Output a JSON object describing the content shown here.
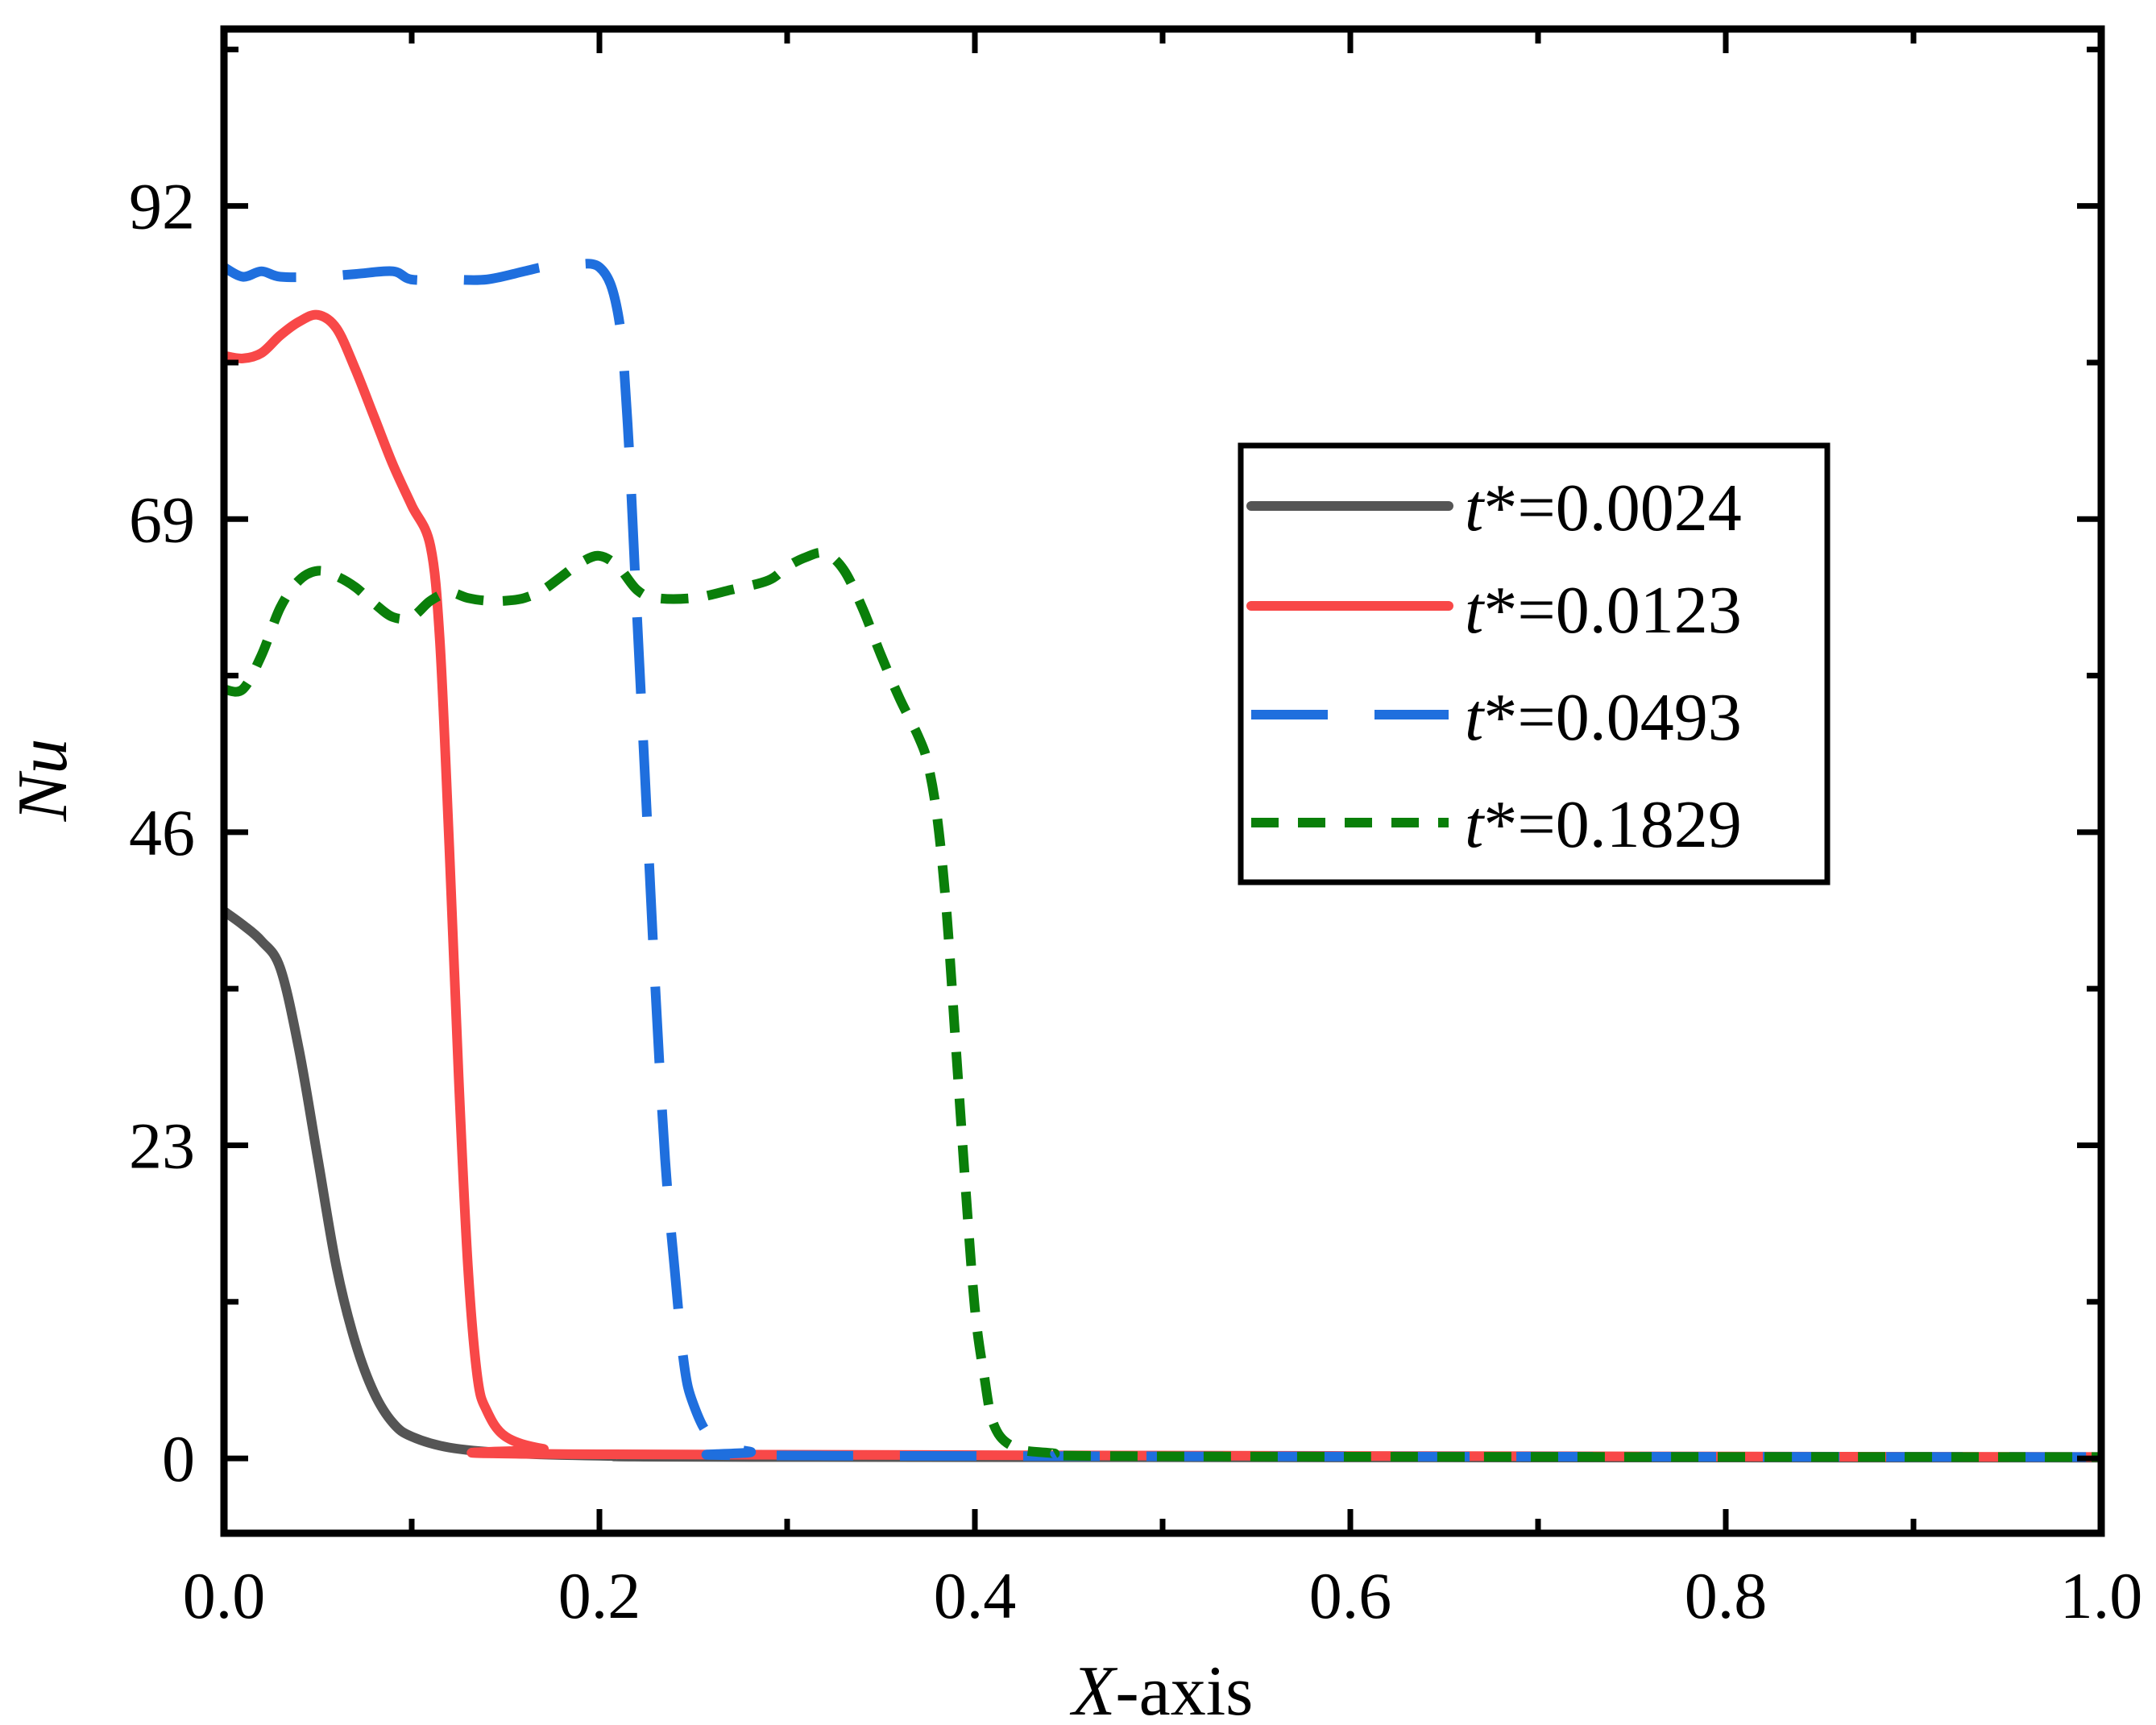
{
  "chart_data": {
    "type": "line",
    "title": "",
    "xlabel": {
      "italic": "X",
      "rest": "-axis"
    },
    "ylabel": "Nu",
    "xlim": [
      0,
      1
    ],
    "ylim": [
      -5.5,
      105
    ],
    "xticks": [
      0,
      0.2,
      0.4,
      0.6,
      0.8,
      1.0
    ],
    "xtick_labels": [
      "0.0",
      "0.2",
      "0.4",
      "0.6",
      "0.8",
      "1.0"
    ],
    "yticks": [
      0,
      23,
      46,
      69,
      92
    ],
    "ytick_labels": [
      "0",
      "23",
      "46",
      "69",
      "92"
    ],
    "legend_position": "upper-right",
    "grid": false,
    "series": [
      {
        "name": "t*=0.0024",
        "legend_prefix": "t",
        "legend_suffix": "*=0.0024",
        "color": "#555555",
        "dash": "solid",
        "points": [
          [
            0,
            40.2
          ],
          [
            0.01,
            39.2
          ],
          [
            0.02,
            38
          ],
          [
            0.03,
            36
          ],
          [
            0.04,
            30
          ],
          [
            0.05,
            22
          ],
          [
            0.06,
            14
          ],
          [
            0.07,
            8.5
          ],
          [
            0.08,
            4.8
          ],
          [
            0.09,
            2.6
          ],
          [
            0.1,
            1.6
          ],
          [
            0.12,
            0.8
          ],
          [
            0.15,
            0.4
          ],
          [
            0.2,
            0.2
          ],
          [
            0.3,
            0.1
          ],
          [
            1.0,
            0.05
          ]
        ]
      },
      {
        "name": "t*=0.0123",
        "legend_prefix": "t",
        "legend_suffix": "*=0.0123",
        "color": "#f84848",
        "dash": "solid",
        "points": [
          [
            0,
            81
          ],
          [
            0.01,
            80.8
          ],
          [
            0.02,
            81.2
          ],
          [
            0.03,
            82.5
          ],
          [
            0.04,
            83.5
          ],
          [
            0.05,
            84
          ],
          [
            0.06,
            83
          ],
          [
            0.07,
            80
          ],
          [
            0.08,
            76.5
          ],
          [
            0.09,
            73
          ],
          [
            0.1,
            70
          ],
          [
            0.11,
            67
          ],
          [
            0.115,
            60
          ],
          [
            0.12,
            45
          ],
          [
            0.125,
            28
          ],
          [
            0.13,
            14
          ],
          [
            0.135,
            6
          ],
          [
            0.14,
            3.5
          ],
          [
            0.15,
            1.6
          ],
          [
            0.17,
            0.7
          ],
          [
            0.2,
            0.3
          ],
          [
            1.0,
            0.1
          ]
        ]
      },
      {
        "name": "t*=0.0493",
        "legend_prefix": "t",
        "legend_suffix": "*=0.0493",
        "color": "#1f6fde",
        "dash": "long-dash",
        "points": [
          [
            0,
            87.5
          ],
          [
            0.01,
            86.8
          ],
          [
            0.02,
            87.2
          ],
          [
            0.03,
            86.8
          ],
          [
            0.05,
            86.8
          ],
          [
            0.07,
            87
          ],
          [
            0.09,
            87.2
          ],
          [
            0.1,
            86.6
          ],
          [
            0.12,
            86.6
          ],
          [
            0.14,
            86.6
          ],
          [
            0.16,
            87.2
          ],
          [
            0.17,
            87.5
          ],
          [
            0.18,
            87.5
          ],
          [
            0.2,
            87.5
          ],
          [
            0.21,
            84
          ],
          [
            0.215,
            76
          ],
          [
            0.22,
            62
          ],
          [
            0.225,
            48
          ],
          [
            0.23,
            34
          ],
          [
            0.235,
            22
          ],
          [
            0.24,
            14
          ],
          [
            0.245,
            7
          ],
          [
            0.25,
            4
          ],
          [
            0.26,
            1.5
          ],
          [
            0.28,
            0.5
          ],
          [
            0.32,
            0.2
          ],
          [
            1.0,
            0.1
          ]
        ]
      },
      {
        "name": "t*=0.1829",
        "legend_prefix": "t",
        "legend_suffix": "*=0.1829",
        "color": "#0a7f0a",
        "dash": "short-dash",
        "points": [
          [
            0,
            56.5
          ],
          [
            0.01,
            56.5
          ],
          [
            0.02,
            59
          ],
          [
            0.03,
            62.5
          ],
          [
            0.04,
            64.5
          ],
          [
            0.05,
            65.2
          ],
          [
            0.06,
            64.8
          ],
          [
            0.07,
            64
          ],
          [
            0.08,
            62.8
          ],
          [
            0.09,
            61.8
          ],
          [
            0.1,
            61.8
          ],
          [
            0.11,
            63
          ],
          [
            0.12,
            63.6
          ],
          [
            0.13,
            63.2
          ],
          [
            0.14,
            63
          ],
          [
            0.15,
            63
          ],
          [
            0.16,
            63.2
          ],
          [
            0.17,
            63.8
          ],
          [
            0.18,
            64.8
          ],
          [
            0.19,
            65.8
          ],
          [
            0.2,
            66.3
          ],
          [
            0.21,
            65.5
          ],
          [
            0.22,
            63.8
          ],
          [
            0.23,
            63.2
          ],
          [
            0.25,
            63.2
          ],
          [
            0.27,
            63.8
          ],
          [
            0.29,
            64.5
          ],
          [
            0.3,
            65.5
          ],
          [
            0.31,
            66.2
          ],
          [
            0.32,
            66.5
          ],
          [
            0.33,
            65.3
          ],
          [
            0.34,
            62.5
          ],
          [
            0.35,
            59
          ],
          [
            0.36,
            55.8
          ],
          [
            0.37,
            53
          ],
          [
            0.375,
            51
          ],
          [
            0.38,
            47
          ],
          [
            0.385,
            40
          ],
          [
            0.39,
            30
          ],
          [
            0.395,
            20
          ],
          [
            0.4,
            11
          ],
          [
            0.405,
            6
          ],
          [
            0.41,
            2.5
          ],
          [
            0.42,
            0.9
          ],
          [
            0.44,
            0.4
          ],
          [
            0.5,
            0.15
          ],
          [
            1.0,
            0.1
          ]
        ]
      }
    ]
  }
}
